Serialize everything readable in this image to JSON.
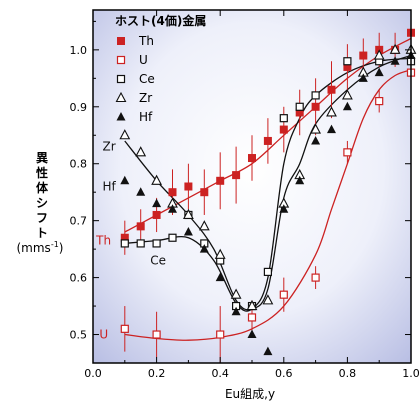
{
  "chart_data": {
    "type": "scatter",
    "title": "",
    "xlabel": "Eu組成,y",
    "ylabel": [
      "異",
      "性",
      "体",
      "シ",
      "フ",
      "ト"
    ],
    "yunit": "(mms",
    "yunit_sup": "-1",
    "yunit_close": ")",
    "xlim": [
      0.0,
      1.0
    ],
    "ylim": [
      0.45,
      1.07
    ],
    "xticks": [
      "0.0",
      "0.2",
      "0.4",
      "0.6",
      "0.8",
      "1.0"
    ],
    "xtick_values": [
      0.0,
      0.2,
      0.4,
      0.6,
      0.8,
      1.0
    ],
    "yticks": [
      "0.5",
      "0.6",
      "0.7",
      "0.8",
      "0.9",
      "1.0"
    ],
    "ytick_values": [
      0.5,
      0.6,
      0.7,
      0.8,
      0.9,
      1.0
    ],
    "legend_title": "ホスト(4価)金属",
    "legend_placement": "top-left",
    "colors": {
      "red": "#cc2222",
      "black": "#111111"
    },
    "series": [
      {
        "name": "Th",
        "marker": "square-filled",
        "color": "#cc2222",
        "points": [
          [
            0.1,
            0.67
          ],
          [
            0.15,
            0.69
          ],
          [
            0.2,
            0.71
          ],
          [
            0.25,
            0.75
          ],
          [
            0.3,
            0.76
          ],
          [
            0.35,
            0.75
          ],
          [
            0.4,
            0.77
          ],
          [
            0.45,
            0.78
          ],
          [
            0.5,
            0.81
          ],
          [
            0.55,
            0.84
          ],
          [
            0.6,
            0.86
          ],
          [
            0.65,
            0.89
          ],
          [
            0.7,
            0.9
          ],
          [
            0.75,
            0.93
          ],
          [
            0.8,
            0.97
          ],
          [
            0.85,
            0.99
          ],
          [
            0.9,
            1.0
          ],
          [
            0.95,
            1.0
          ],
          [
            1.0,
            1.03
          ]
        ],
        "errors": [
          0.03,
          0.03,
          0.03,
          0.04,
          0.04,
          0.04,
          0.05,
          0.05,
          0.04,
          0.04,
          0.04,
          0.04,
          0.05,
          0.05,
          0.04,
          0.03,
          0.03,
          0.03,
          0.03
        ]
      },
      {
        "name": "U",
        "marker": "square-open",
        "color": "#cc2222",
        "points": [
          [
            0.1,
            0.51
          ],
          [
            0.2,
            0.5
          ],
          [
            0.4,
            0.5
          ],
          [
            0.5,
            0.53
          ],
          [
            0.6,
            0.57
          ],
          [
            0.7,
            0.6
          ],
          [
            0.8,
            0.82
          ],
          [
            0.9,
            0.91
          ],
          [
            1.0,
            0.96
          ]
        ],
        "errors": [
          0.04,
          0.04,
          0.05,
          0.03,
          0.03,
          0.02,
          0.02,
          0.02,
          0.01
        ]
      },
      {
        "name": "Ce",
        "marker": "square-open",
        "color": "#111111",
        "points": [
          [
            0.1,
            0.66
          ],
          [
            0.15,
            0.66
          ],
          [
            0.2,
            0.66
          ],
          [
            0.25,
            0.67
          ],
          [
            0.3,
            0.71
          ],
          [
            0.35,
            0.66
          ],
          [
            0.4,
            0.63
          ],
          [
            0.45,
            0.55
          ],
          [
            0.5,
            0.55
          ],
          [
            0.55,
            0.61
          ],
          [
            0.6,
            0.88
          ],
          [
            0.65,
            0.9
          ],
          [
            0.7,
            0.92
          ],
          [
            0.8,
            0.98
          ],
          [
            0.9,
            0.98
          ],
          [
            1.0,
            0.98
          ]
        ]
      },
      {
        "name": "Zr",
        "marker": "triangle-open",
        "color": "#111111",
        "points": [
          [
            0.1,
            0.85
          ],
          [
            0.15,
            0.82
          ],
          [
            0.2,
            0.77
          ],
          [
            0.25,
            0.73
          ],
          [
            0.3,
            0.71
          ],
          [
            0.35,
            0.69
          ],
          [
            0.4,
            0.64
          ],
          [
            0.45,
            0.57
          ],
          [
            0.5,
            0.55
          ],
          [
            0.55,
            0.56
          ],
          [
            0.6,
            0.73
          ],
          [
            0.65,
            0.78
          ],
          [
            0.7,
            0.86
          ],
          [
            0.75,
            0.89
          ],
          [
            0.8,
            0.92
          ],
          [
            0.85,
            0.96
          ],
          [
            0.9,
            0.99
          ],
          [
            0.95,
            1.0
          ],
          [
            1.0,
            1.0
          ]
        ]
      },
      {
        "name": "Hf",
        "marker": "triangle-filled",
        "color": "#111111",
        "points": [
          [
            0.1,
            0.77
          ],
          [
            0.15,
            0.75
          ],
          [
            0.2,
            0.73
          ],
          [
            0.25,
            0.72
          ],
          [
            0.3,
            0.68
          ],
          [
            0.35,
            0.65
          ],
          [
            0.4,
            0.6
          ],
          [
            0.45,
            0.54
          ],
          [
            0.5,
            0.5
          ],
          [
            0.55,
            0.47
          ],
          [
            0.6,
            0.72
          ],
          [
            0.65,
            0.77
          ],
          [
            0.7,
            0.84
          ],
          [
            0.75,
            0.86
          ],
          [
            0.8,
            0.9
          ],
          [
            0.85,
            0.95
          ],
          [
            0.9,
            0.96
          ],
          [
            0.95,
            0.98
          ],
          [
            1.0,
            0.99
          ]
        ]
      }
    ],
    "curves": [
      {
        "name": "Th",
        "color": "#cc2222",
        "points": [
          [
            0.1,
            0.68
          ],
          [
            0.2,
            0.71
          ],
          [
            0.3,
            0.74
          ],
          [
            0.4,
            0.77
          ],
          [
            0.5,
            0.8
          ],
          [
            0.6,
            0.85
          ],
          [
            0.7,
            0.9
          ],
          [
            0.8,
            0.95
          ],
          [
            0.9,
            0.99
          ],
          [
            1.0,
            1.02
          ]
        ]
      },
      {
        "name": "U",
        "color": "#cc2222",
        "points": [
          [
            0.1,
            0.5
          ],
          [
            0.2,
            0.493
          ],
          [
            0.3,
            0.49
          ],
          [
            0.4,
            0.495
          ],
          [
            0.5,
            0.51
          ],
          [
            0.6,
            0.55
          ],
          [
            0.7,
            0.64
          ],
          [
            0.75,
            0.72
          ],
          [
            0.8,
            0.8
          ],
          [
            0.85,
            0.88
          ],
          [
            0.9,
            0.93
          ],
          [
            0.95,
            0.955
          ],
          [
            1.0,
            0.965
          ]
        ]
      },
      {
        "name": "Ce",
        "color": "#111111",
        "points": [
          [
            0.1,
            0.66
          ],
          [
            0.2,
            0.665
          ],
          [
            0.3,
            0.67
          ],
          [
            0.38,
            0.63
          ],
          [
            0.45,
            0.555
          ],
          [
            0.5,
            0.545
          ],
          [
            0.55,
            0.6
          ],
          [
            0.6,
            0.8
          ],
          [
            0.65,
            0.88
          ],
          [
            0.7,
            0.92
          ],
          [
            0.8,
            0.96
          ],
          [
            0.9,
            0.98
          ],
          [
            1.0,
            0.985
          ]
        ]
      },
      {
        "name": "Zr",
        "color": "#111111",
        "points": [
          [
            0.1,
            0.84
          ],
          [
            0.2,
            0.77
          ],
          [
            0.3,
            0.71
          ],
          [
            0.38,
            0.65
          ],
          [
            0.45,
            0.56
          ],
          [
            0.5,
            0.545
          ],
          [
            0.55,
            0.58
          ],
          [
            0.6,
            0.74
          ],
          [
            0.65,
            0.8
          ],
          [
            0.7,
            0.87
          ],
          [
            0.8,
            0.93
          ],
          [
            0.9,
            0.97
          ],
          [
            1.0,
            0.99
          ]
        ]
      }
    ],
    "annotations": [
      {
        "text": "Zr",
        "x": 0.03,
        "y": 0.83,
        "color": "#111111"
      },
      {
        "text": "Hf",
        "x": 0.03,
        "y": 0.76,
        "color": "#111111"
      },
      {
        "text": "Th",
        "x": 0.01,
        "y": 0.665,
        "color": "#cc2222"
      },
      {
        "text": "Ce",
        "x": 0.18,
        "y": 0.63,
        "color": "#111111"
      },
      {
        "text": "U",
        "x": 0.02,
        "y": 0.5,
        "color": "#cc2222"
      }
    ]
  }
}
